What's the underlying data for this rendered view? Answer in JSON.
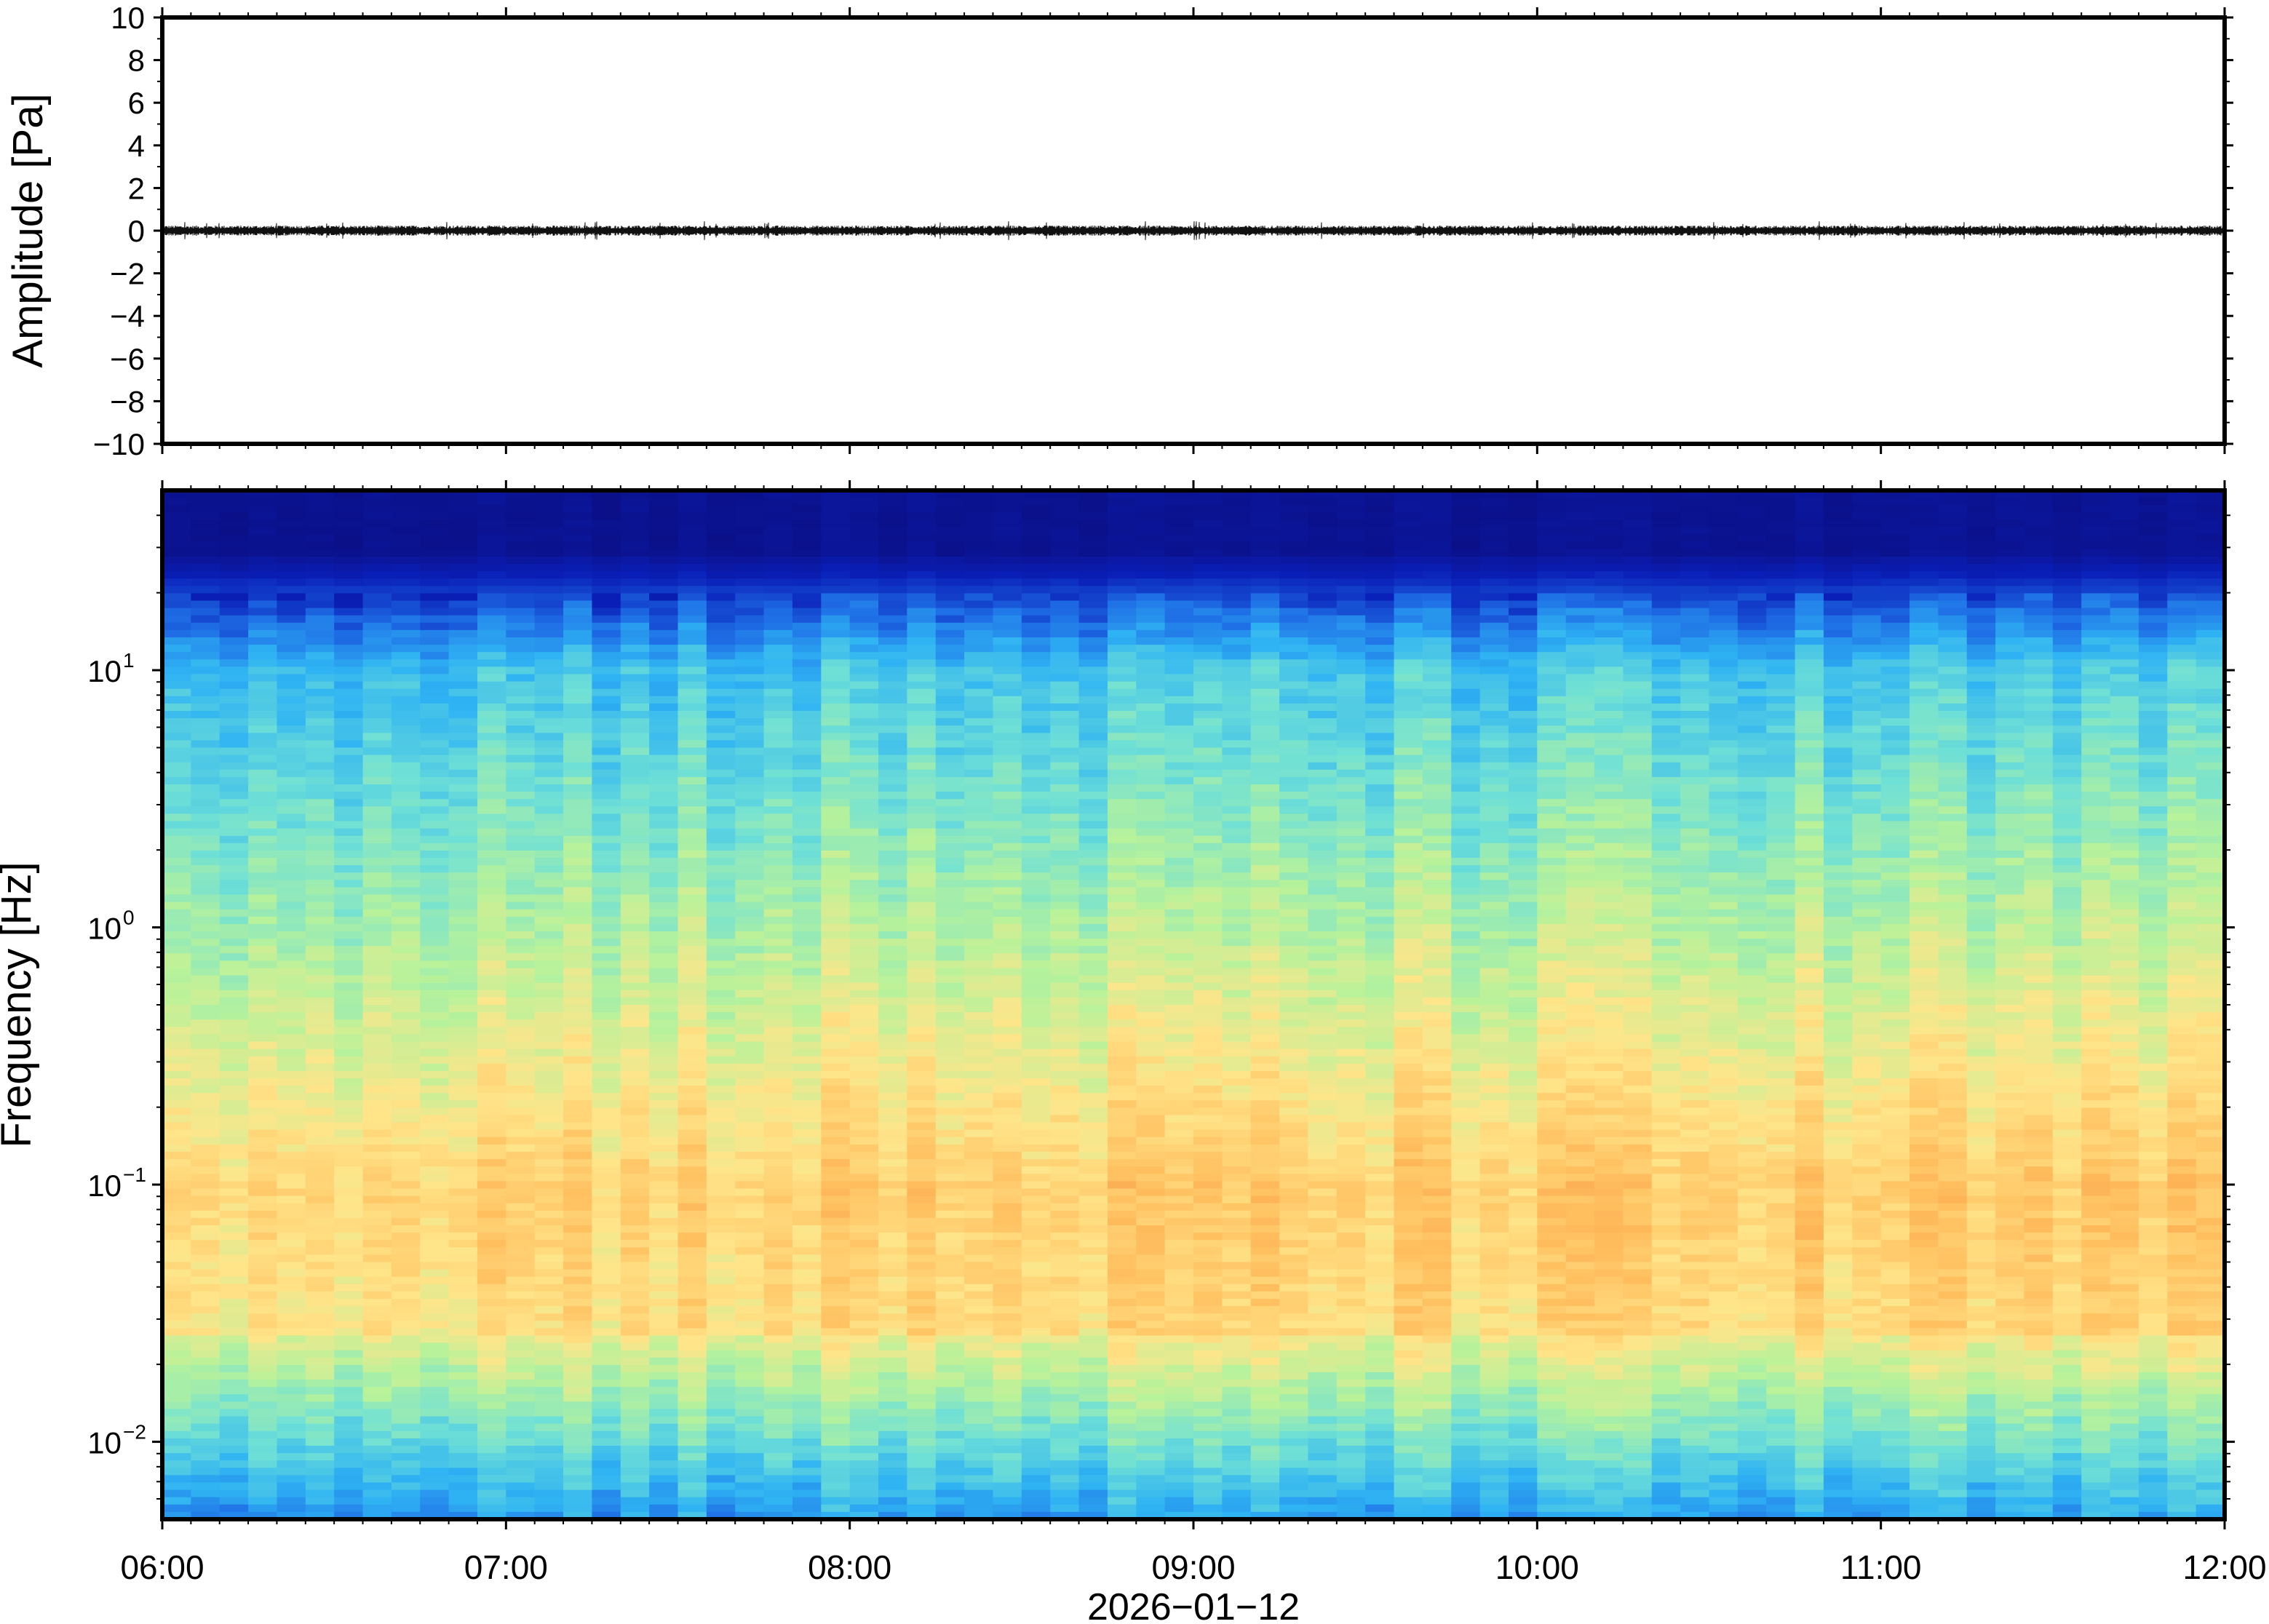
{
  "chart_data": [
    {
      "type": "line",
      "ylabel": "Amplitude [Pa]",
      "ylim": [
        -10,
        10
      ],
      "yticks": [
        -10,
        -8,
        -6,
        -4,
        -2,
        0,
        2,
        4,
        6,
        8,
        10
      ],
      "ytick_labels": [
        "−10",
        "−8",
        "−6",
        "−4",
        "−2",
        "0",
        "2",
        "4",
        "6",
        "8",
        "10"
      ],
      "xlim": [
        "06:00",
        "12:00"
      ],
      "series": [
        {
          "values": "continuous pressure trace fluctuating within about ±0.5 Pa around 0 across 06:00–12:00"
        }
      ],
      "grid": false
    },
    {
      "type": "heatmap",
      "ylabel": "Frequency [Hz]",
      "yscale": "log",
      "ylim": [
        0.005,
        50
      ],
      "yticks": [
        0.01,
        0.1,
        1,
        10
      ],
      "ytick_labels": [
        {
          "base": "10",
          "exp": "−2"
        },
        {
          "base": "10",
          "exp": "−1"
        },
        {
          "base": "10",
          "exp": "0"
        },
        {
          "base": "10",
          "exp": "1"
        }
      ],
      "xlim": [
        "06:00",
        "12:00"
      ],
      "colormap": [
        "#0c0b78",
        "#0a1fb8",
        "#1f6fe6",
        "#2fb3f3",
        "#6fe0d6",
        "#b8f29a",
        "#ffe58a",
        "#ffc060",
        "#f7913f"
      ],
      "pattern": "highest power (orange/red) near 0.02–0.1 Hz; green-blue toward 1 Hz; dark blue above about 10 Hz",
      "grid": false
    }
  ],
  "xaxis": {
    "ticks": [
      "06:00",
      "07:00",
      "08:00",
      "09:00",
      "10:00",
      "11:00",
      "12:00"
    ],
    "label": "2026−01−12"
  }
}
